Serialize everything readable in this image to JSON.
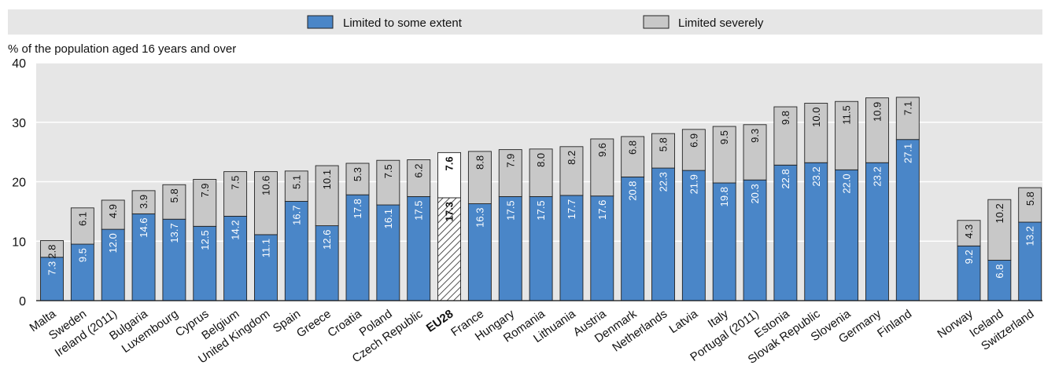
{
  "chart_data": {
    "type": "bar",
    "stacked": true,
    "ylabel": "% of the population aged 16 years and over",
    "xlabel": "",
    "ylim": [
      0,
      40
    ],
    "yticks": [
      0,
      10,
      20,
      30,
      40
    ],
    "grid": true,
    "legend_position": "top",
    "categories": [
      "Malta",
      "Sweden",
      "Ireland (2011)",
      "Bulgaria",
      "Luxembourg",
      "Cyprus",
      "Belgium",
      "United Kingdom",
      "Spain",
      "Greece",
      "Croatia",
      "Poland",
      "Czech Republic",
      "EU28",
      "France",
      "Hungary",
      "Romania",
      "Lithuania",
      "Austria",
      "Denmark",
      "Netherlands",
      "Latvia",
      "Italy",
      "Portugal (2011)",
      "Estonia",
      "Slovak Republic",
      "Slovenia",
      "Germany",
      "Finland",
      "",
      "Norway",
      "Iceland",
      "Switzerland"
    ],
    "highlight": "EU28",
    "series": [
      {
        "name": "Limited to some extent",
        "color": "#4a86c8",
        "values": [
          7.3,
          9.5,
          12.0,
          14.6,
          13.7,
          12.5,
          14.2,
          11.1,
          16.7,
          12.6,
          17.8,
          16.1,
          17.5,
          17.3,
          16.3,
          17.5,
          17.5,
          17.7,
          17.6,
          20.8,
          22.3,
          21.9,
          19.8,
          20.3,
          22.8,
          23.2,
          22.0,
          23.2,
          27.1,
          null,
          9.2,
          6.8,
          13.2
        ]
      },
      {
        "name": "Limited severely",
        "color": "#c8c8c8",
        "values": [
          2.8,
          6.1,
          4.9,
          3.9,
          5.8,
          7.9,
          7.5,
          10.6,
          5.1,
          10.1,
          5.3,
          7.5,
          6.2,
          7.6,
          8.8,
          7.9,
          8.0,
          8.2,
          9.6,
          6.8,
          5.8,
          6.9,
          9.5,
          9.3,
          9.8,
          10.0,
          11.5,
          10.9,
          7.1,
          null,
          4.3,
          10.2,
          5.8
        ]
      }
    ],
    "value_labels": {
      "lower": [
        "7.3",
        "9.5",
        "12.0",
        "14.6",
        "13.7",
        "12.5",
        "14.2",
        "11.1",
        "16.7",
        "12.6",
        "17.8",
        "16.1",
        "17.5",
        "17.3",
        "16.3",
        "17.5",
        "17.5",
        "17.7",
        "17.6",
        "20.8",
        "22.3",
        "21.9",
        "19.8",
        "20.3",
        "22.8",
        "23.2",
        "22.0",
        "23.2",
        "27.1",
        "",
        "9.2",
        "6.8",
        "13.2"
      ],
      "upper": [
        "2.8",
        "6.1",
        "4.9",
        "3.9",
        "5.8",
        "7.9",
        "7.5",
        "10.6",
        "5.1",
        "10.1",
        "5.3",
        "7.5",
        "6.2",
        "7.6",
        "8.8",
        "7.9",
        "8.0",
        "8.2",
        "9.6",
        "6.8",
        "5.8",
        "6.9",
        "9.5",
        "9.3",
        "9.8",
        "10.0",
        "11.5",
        "10.9",
        "7.1",
        "",
        "4.3",
        "10.2",
        "5.8"
      ]
    }
  }
}
